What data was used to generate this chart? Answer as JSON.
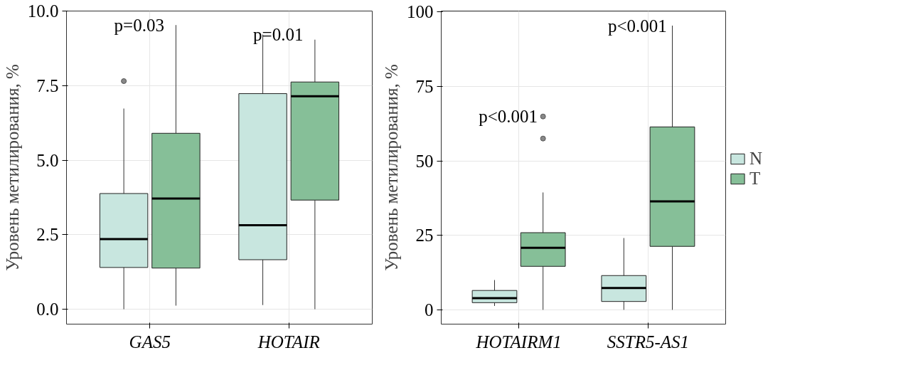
{
  "chart_data": [
    {
      "type": "box",
      "ylabel": "Уровень метилирования, %",
      "categories": [
        "GAS5",
        "HOTAIR"
      ],
      "ylim": [
        -0.5,
        10.0
      ],
      "yticks": [
        {
          "value": 0,
          "label": "0.0"
        },
        {
          "value": 2.5,
          "label": "2.5"
        },
        {
          "value": 5,
          "label": "5.0"
        },
        {
          "value": 7.5,
          "label": "7.5"
        },
        {
          "value": 10,
          "label": "10.0"
        }
      ],
      "grid": true,
      "series": [
        {
          "color": "#c8e6df",
          "boxes": [
            {
              "low": 0.0,
              "q1": 1.4,
              "median": 2.35,
              "q3": 3.88,
              "high": 6.73,
              "outliers": [
                7.65
              ]
            },
            {
              "low": 0.14,
              "q1": 1.66,
              "median": 2.82,
              "q3": 7.23,
              "high": 9.21
            }
          ]
        },
        {
          "color": "#86bf98",
          "boxes": [
            {
              "low": 0.12,
              "q1": 1.38,
              "median": 3.71,
              "q3": 5.9,
              "high": 9.53
            },
            {
              "low": 0.0,
              "q1": 3.66,
              "median": 7.14,
              "q3": 7.62,
              "high": 9.04
            }
          ]
        }
      ],
      "annotations": [
        "p=0.03",
        "p=0.01"
      ]
    },
    {
      "type": "box",
      "ylabel": "Уровень метилирования, %",
      "categories": [
        "HOTAIRM1",
        "SSTR5-AS1"
      ],
      "ylim": [
        -4.8,
        100.3
      ],
      "yticks": [
        0,
        25,
        50,
        75,
        100
      ],
      "grid": true,
      "legend": "right",
      "series": [
        {
          "name": "N",
          "color": "#c8e6df",
          "boxes": [
            {
              "low": 1.3,
              "q1": 2.4,
              "median": 3.9,
              "q3": 6.5,
              "high": 10.0
            },
            {
              "low": 0.0,
              "q1": 2.8,
              "median": 7.3,
              "q3": 11.5,
              "high": 24.1
            }
          ]
        },
        {
          "name": "T",
          "color": "#86bf98",
          "boxes": [
            {
              "low": 0.0,
              "q1": 14.6,
              "median": 20.8,
              "q3": 25.9,
              "high": 39.4,
              "outliers": [
                57.5,
                64.9
              ]
            },
            {
              "low": 0.0,
              "q1": 21.3,
              "median": 36.4,
              "q3": 61.4,
              "high": 95.4
            }
          ]
        }
      ],
      "annotations": [
        "p<0.001",
        "p<0.001"
      ]
    }
  ]
}
